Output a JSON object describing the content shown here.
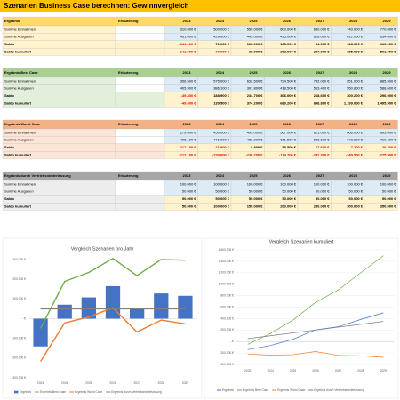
{
  "title": "Szenarien Business Case berechnen: Gewinnvergleich",
  "tables": [
    {
      "header": {
        "label": "Ergebnis",
        "note": "Erläuterung",
        "years": [
          "2023",
          "2024",
          "2025",
          "2026",
          "2027",
          "2028",
          "2029"
        ]
      },
      "rows": [
        {
          "label": "Summe Einnahmen",
          "values": [
            "310.000 €",
            "500.000 €",
            "550.000 €",
            "600.000 €",
            "680.000 €",
            "740.000 €",
            "770.000 €"
          ]
        },
        {
          "label": "Summe Ausgaben",
          "values": [
            "451.000 €",
            "429.000 €",
            "442.000 €",
            "435.000 €",
            "626.000 €",
            "612.000 €",
            "654.000 €"
          ]
        },
        {
          "label": "Saldo",
          "values": [
            "-141.000 €",
            "71.000 €",
            "108.000 €",
            "165.000 €",
            "54.000 €",
            "128.000 €",
            "116.000 €"
          ]
        },
        {
          "label": "Saldo kumuliert",
          "values": [
            "-141.000 €",
            "-70.000 €",
            "38.000 €",
            "203.000 €",
            "257.000 €",
            "385.000 €",
            "501.000 €"
          ]
        }
      ]
    },
    {
      "header": {
        "label": "Ergebnis Best Case",
        "note": "Erläuterung",
        "years": [
          "2023",
          "2024",
          "2025",
          "2026",
          "2027",
          "2028",
          "2029"
        ]
      },
      "rows": [
        {
          "label": "Summe Einnahmen",
          "values": [
            "356.500 €",
            "575.000 €",
            "632.500 €",
            "724.500 €",
            "782.000 €",
            "851.000 €",
            "885.500 €"
          ]
        },
        {
          "label": "Summe Ausgaben",
          "values": [
            "405.900 €",
            "386.100 €",
            "397.800 €",
            "418.500 €",
            "563.400 €",
            "550.800 €",
            "588.600 €"
          ]
        },
        {
          "label": "Saldo",
          "values": [
            "-49.400 €",
            "188.900 €",
            "234.700 €",
            "306.000 €",
            "218.600 €",
            "300.200 €",
            "296.900 €"
          ]
        },
        {
          "label": "Saldo kumuliert",
          "values": [
            "-49.400 €",
            "139.500 €",
            "374.200 €",
            "680.200 €",
            "898.800 €",
            "1.199.000 €",
            "1.495.900 €"
          ]
        }
      ]
    },
    {
      "header": {
        "label": "Ergebnis Worst Case",
        "note": "Erläuterung",
        "years": [
          "2023",
          "2024",
          "2025",
          "2026",
          "2027",
          "2028",
          "2029"
        ]
      },
      "rows": [
        {
          "label": "Summe Einnahmen",
          "values": [
            "279.000 €",
            "450.000 €",
            "495.000 €",
            "567.000 €",
            "621.000 €",
            "666.000 €",
            "693.000 €"
          ]
        },
        {
          "label": "Summe Ausgaben",
          "values": [
            "496.100 €",
            "471.900 €",
            "486.200 €",
            "511.500 €",
            "688.600 €",
            "673.200 €",
            "719.400 €"
          ]
        },
        {
          "label": "Saldo",
          "values": [
            "-217.100 €",
            "-21.900 €",
            "8.800 €",
            "55.500 €",
            "-67.600 €",
            "-7.200 €",
            "-26.400 €"
          ]
        },
        {
          "label": "Saldo kumuliert",
          "values": [
            "-217.100 €",
            "-239.000 €",
            "-230.200 €",
            "-174.700 €",
            "-242.300 €",
            "-249.500 €",
            "-275.900 €"
          ]
        }
      ]
    },
    {
      "header": {
        "label": "Ergebnis durch Vertriebsniederlassung",
        "note": "Erläuterung",
        "years": [
          "2023",
          "2024",
          "2025",
          "2026",
          "2027",
          "2028",
          "2029"
        ]
      },
      "rows": [
        {
          "label": "Summe Einnahmen",
          "values": [
            "100.000 €",
            "100.000 €",
            "100.000 €",
            "100.000 €",
            "100.000 €",
            "100.000 €",
            "100.000 €"
          ]
        },
        {
          "label": "Summe Ausgaben",
          "values": [
            "50.000 €",
            "50.000 €",
            "50.000 €",
            "50.000 €",
            "50.000 €",
            "50.000 €",
            "50.000 €"
          ]
        },
        {
          "label": "Saldo",
          "values": [
            "50.000 €",
            "50.000 €",
            "50.000 €",
            "50.000 €",
            "50.000 €",
            "50.000 €",
            "50.000 €"
          ]
        },
        {
          "label": "Saldo kumuliert",
          "values": [
            "50.000 €",
            "100.000 €",
            "150.000 €",
            "200.000 €",
            "250.000 €",
            "300.000 €",
            "350.000 €"
          ]
        }
      ]
    }
  ],
  "chart_data": [
    {
      "type": "bar_line",
      "title": "Vergleich Szenarien pro Jahr",
      "categories": [
        "2023",
        "2024",
        "2025",
        "2026",
        "2027",
        "2028",
        "2029"
      ],
      "ylim": [
        -300000,
        300000
      ],
      "yticks": [
        {
          "value": -300000,
          "label": "-300.000 €"
        },
        {
          "value": -200000,
          "label": "-200.000 €"
        },
        {
          "value": -100000,
          "label": "-100.000 €"
        },
        {
          "value": 0,
          "label": "- €"
        },
        {
          "value": 100000,
          "label": "100.000 €"
        },
        {
          "value": 200000,
          "label": "200.000 €"
        },
        {
          "value": 300000,
          "label": "300.000 €"
        }
      ],
      "grid": false,
      "legend": "bottom",
      "series": [
        {
          "name": "Ergebnis",
          "type": "bar",
          "color": "#4472c4",
          "values": [
            -141000,
            71000,
            108000,
            165000,
            54000,
            128000,
            116000
          ]
        },
        {
          "name": "Ergebnis Best Case",
          "type": "line",
          "color": "#70ad47",
          "values": [
            -49400,
            188900,
            234700,
            306000,
            218600,
            300200,
            296900
          ]
        },
        {
          "name": "Ergebnis Worst Case",
          "type": "line",
          "color": "#ed7d31",
          "values": [
            -217100,
            -21900,
            8800,
            55500,
            -67600,
            -7200,
            -26400
          ]
        },
        {
          "name": "Ergebnis durch Vertriebsniederlassung",
          "type": "line",
          "color": "#7f7f7f",
          "values": [
            50000,
            50000,
            50000,
            50000,
            50000,
            50000,
            50000
          ]
        }
      ]
    },
    {
      "type": "line",
      "title": "Vergleich Szenarien kumuliert",
      "categories": [
        "2023",
        "2024",
        "2025",
        "2026",
        "2027",
        "2028",
        "2029"
      ],
      "ylim": [
        -400000,
        1600000
      ],
      "yticks": [
        {
          "value": -400000,
          "label": "-400.000 €"
        },
        {
          "value": -200000,
          "label": "-200.000 €"
        },
        {
          "value": 0,
          "label": "- €"
        },
        {
          "value": 200000,
          "label": "200.000 €"
        },
        {
          "value": 400000,
          "label": "400.000 €"
        },
        {
          "value": 600000,
          "label": "600.000 €"
        },
        {
          "value": 800000,
          "label": "800.000 €"
        },
        {
          "value": 1000000,
          "label": "1.000.000 €"
        },
        {
          "value": 1200000,
          "label": "1.200.000 €"
        },
        {
          "value": 1400000,
          "label": "1.400.000 €"
        },
        {
          "value": 1600000,
          "label": "1.600.000 €"
        }
      ],
      "grid": true,
      "legend": "bottom",
      "series": [
        {
          "name": "Ergebnis",
          "type": "line",
          "color": "#4472c4",
          "values": [
            -141000,
            -70000,
            38000,
            203000,
            257000,
            385000,
            501000
          ]
        },
        {
          "name": "Ergebnis Best Case",
          "type": "line",
          "color": "#70ad47",
          "values": [
            -49400,
            139500,
            374200,
            680200,
            898800,
            1199000,
            1495900
          ]
        },
        {
          "name": "Ergebnis Worst Case",
          "type": "line",
          "color": "#ed7d31",
          "values": [
            -217100,
            -239000,
            -230200,
            -174700,
            -242300,
            -249500,
            -275900
          ]
        },
        {
          "name": "Ergebnis durch Vertriebsniederlassung",
          "type": "line",
          "color": "#7f7f7f",
          "values": [
            50000,
            100000,
            150000,
            200000,
            250000,
            300000,
            350000
          ]
        }
      ]
    }
  ]
}
